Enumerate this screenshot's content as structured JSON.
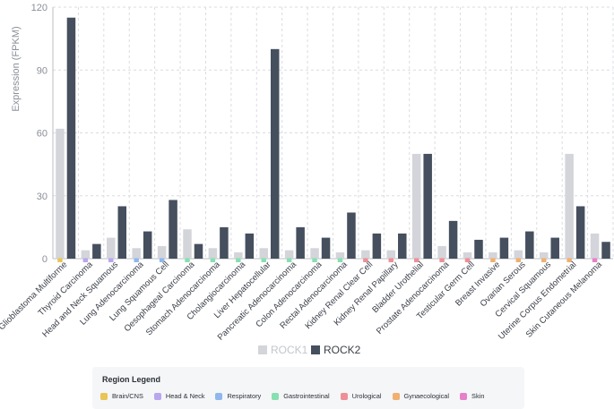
{
  "chart_data": {
    "type": "bar",
    "ylabel": "Expression (FPKM)",
    "ylim": [
      0,
      120
    ],
    "yticks": [
      0,
      30,
      60,
      90,
      120
    ],
    "grid": true,
    "categories": [
      "Glioblastoma Multiforme",
      "Thyroid Carcinoma",
      "Head and Neck Squamous",
      "Lung Adenocarcinoma",
      "Lung Squamous Cell",
      "Oesophageal Carcinoma",
      "Stomach Adenocarcinoma",
      "Cholangiocarcinoma",
      "Liver Hepatocellular",
      "Pancreatic Adenocarcinoma",
      "Colon Adenocarcinoma",
      "Rectal Adenocarcinoma",
      "Kidney Renal Clear Cell",
      "Kidney Renal Papillary",
      "Bladder Urothelial",
      "Prostate Adenocarcinoma",
      "Testicular Germ Cell",
      "Breast Invasive",
      "Ovarian Serous",
      "Cervical Squamous",
      "Uterine Corpus Endometrial",
      "Skin Cutaneous Melanoma"
    ],
    "regions": [
      "Brain/CNS",
      "Head & Neck",
      "Head & Neck",
      "Respiratory",
      "Respiratory",
      "Gastrointestinal",
      "Gastrointestinal",
      "Gastrointestinal",
      "Gastrointestinal",
      "Gastrointestinal",
      "Gastrointestinal",
      "Gastrointestinal",
      "Urological",
      "Urological",
      "Urological",
      "Urological",
      "Urological",
      "Gynaecological",
      "Gynaecological",
      "Gynaecological",
      "Gynaecological",
      "Skin"
    ],
    "series": [
      {
        "name": "ROCK1",
        "color": "#d3d5da",
        "values": [
          62,
          4,
          10,
          5,
          6,
          14,
          5,
          3,
          5,
          4,
          5,
          3,
          4,
          4,
          50,
          6,
          3,
          3,
          4,
          3,
          50,
          12
        ]
      },
      {
        "name": "ROCK2",
        "color": "#454f5e",
        "values": [
          115,
          7,
          25,
          13,
          28,
          7,
          15,
          12,
          100,
          15,
          10,
          22,
          12,
          12,
          50,
          18,
          9,
          10,
          13,
          10,
          25,
          8
        ]
      }
    ],
    "legend_placement": "bottom-center"
  },
  "region_legend": {
    "title": "Region Legend",
    "items": [
      {
        "label": "Brain/CNS",
        "color": "#e8c554"
      },
      {
        "label": "Head & Neck",
        "color": "#b9a6ef"
      },
      {
        "label": "Respiratory",
        "color": "#8fb7ee"
      },
      {
        "label": "Gastrointestinal",
        "color": "#86e0b0"
      },
      {
        "label": "Urological",
        "color": "#ee8f97"
      },
      {
        "label": "Gynaecological",
        "color": "#f0b070"
      },
      {
        "label": "Skin",
        "color": "#e680c8"
      }
    ]
  }
}
